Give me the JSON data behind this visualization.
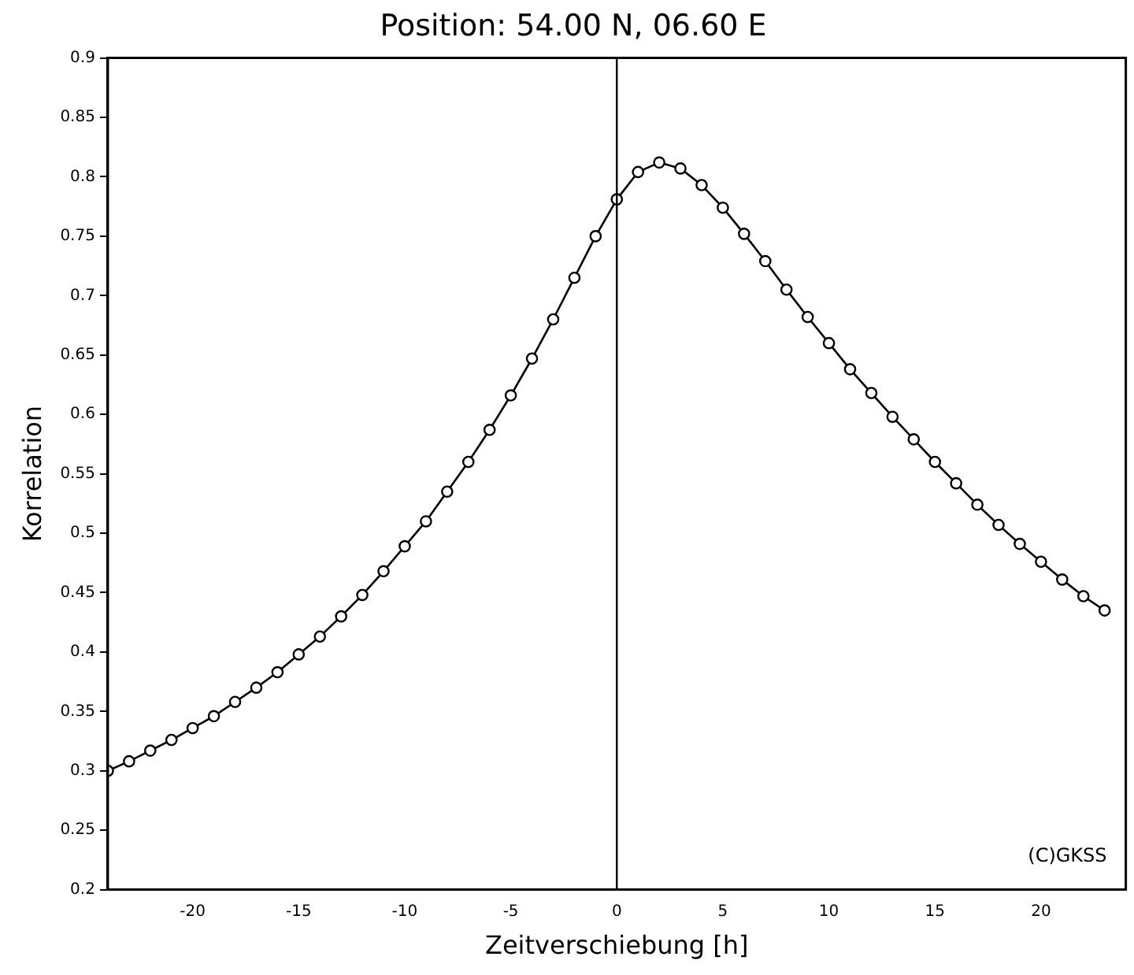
{
  "chart_data": {
    "type": "line",
    "title": "Position: 54.00 N, 06.60 E",
    "xlabel": "Zeitverschiebung [h]",
    "ylabel": "Korrelation",
    "x": [
      -24,
      -23,
      -22,
      -21,
      -20,
      -19,
      -18,
      -17,
      -16,
      -15,
      -14,
      -13,
      -12,
      -11,
      -10,
      -9,
      -8,
      -7,
      -6,
      -5,
      -4,
      -3,
      -2,
      -1,
      0,
      1,
      2,
      3,
      4,
      5,
      6,
      7,
      8,
      9,
      10,
      11,
      12,
      13,
      14,
      15,
      16,
      17,
      18,
      19,
      20,
      21,
      22,
      23
    ],
    "series": [
      {
        "color": "#000000",
        "values": [
          0.3,
          0.308,
          0.317,
          0.326,
          0.336,
          0.346,
          0.358,
          0.37,
          0.383,
          0.398,
          0.413,
          0.43,
          0.448,
          0.468,
          0.489,
          0.51,
          0.535,
          0.56,
          0.587,
          0.616,
          0.647,
          0.68,
          0.715,
          0.75,
          0.781,
          0.804,
          0.812,
          0.807,
          0.793,
          0.774,
          0.752,
          0.729,
          0.705,
          0.682,
          0.66,
          0.638,
          0.618,
          0.598,
          0.579,
          0.56,
          0.542,
          0.524,
          0.507,
          0.491,
          0.476,
          0.461,
          0.447,
          0.435
        ]
      }
    ],
    "xlim": [
      -24,
      24
    ],
    "xticks": [
      -20,
      -15,
      -10,
      -5,
      0,
      5,
      10,
      15,
      20
    ],
    "ylim": [
      0.2,
      0.9
    ],
    "yticks": [
      0.2,
      0.25,
      0.3,
      0.35,
      0.4,
      0.45,
      0.5,
      0.55,
      0.6,
      0.65,
      0.7,
      0.75,
      0.8,
      0.85,
      0.9
    ],
    "ref_lines": [
      {
        "axis": "x",
        "value": 0,
        "color": "#000000"
      }
    ],
    "annotations": [
      "(C)GKSS"
    ],
    "grid": false,
    "legend": false,
    "marker": "circle",
    "line_style": "solid"
  }
}
